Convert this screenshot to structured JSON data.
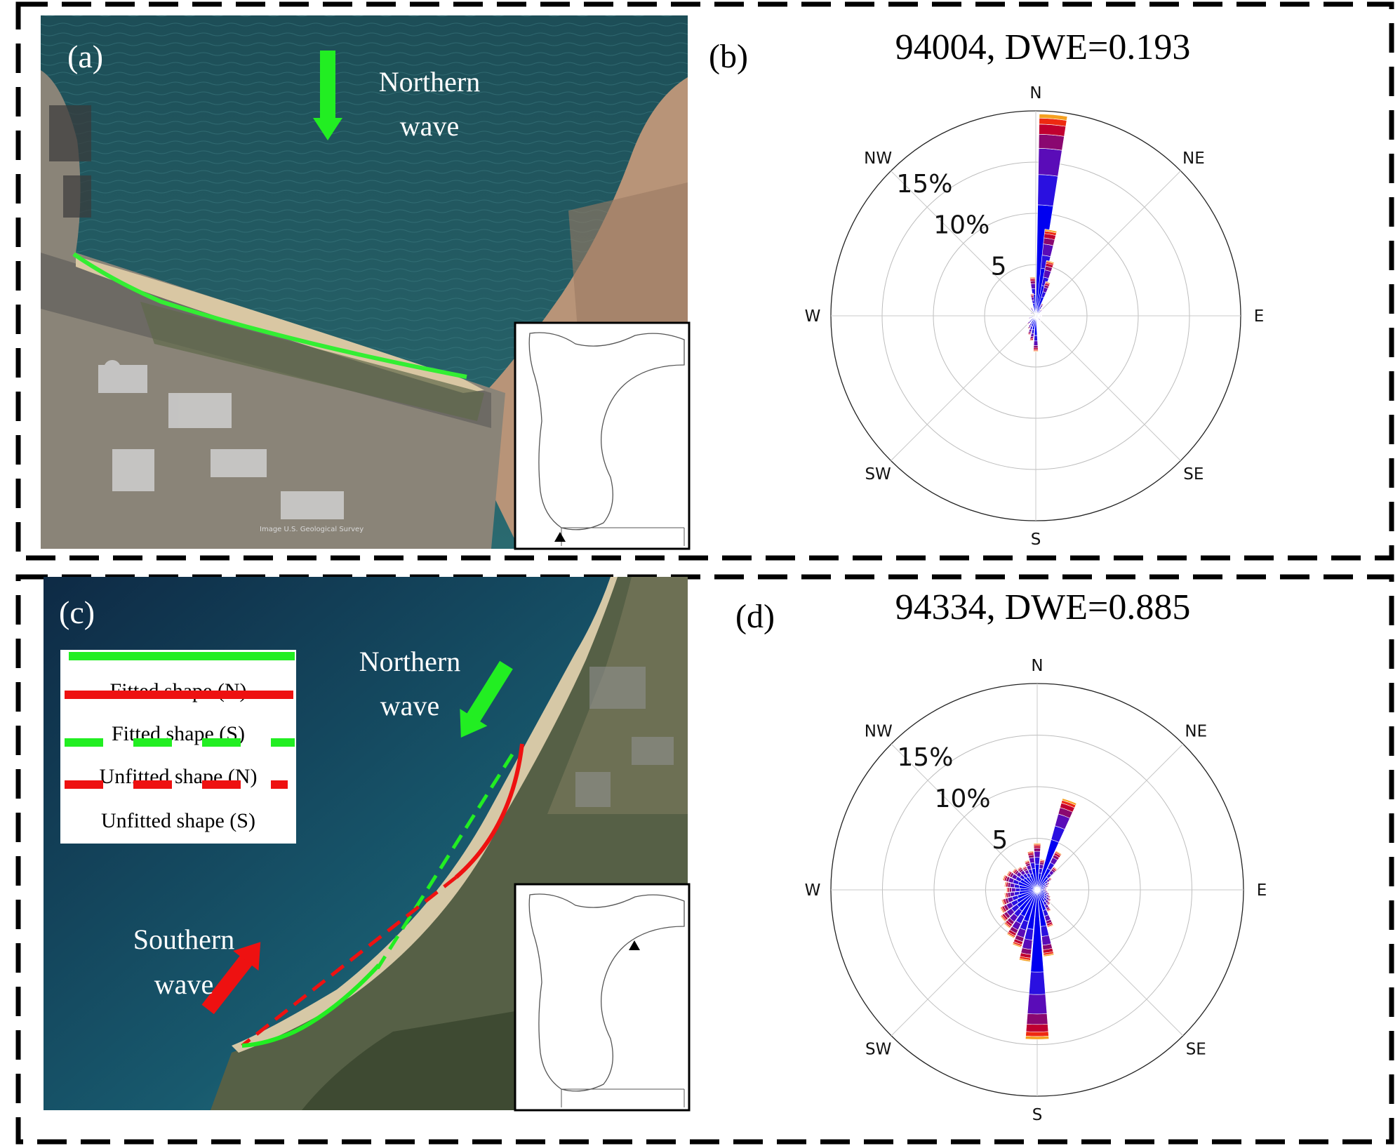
{
  "panels": {
    "a": {
      "label": "(a)",
      "arrow_label_line1": "Northern",
      "arrow_label_line2": "wave",
      "credit": "Image U.S. Geological Survey",
      "arrow_color": "#22ee22",
      "shoreline_color": "#33ee33"
    },
    "b": {
      "label": "(b)",
      "title": "94004, DWE=0.193"
    },
    "c": {
      "label": "(c)",
      "north_label_line1": "Northern",
      "north_label_line2": "wave",
      "south_label_line1": "Southern",
      "south_label_line2": "wave",
      "legend": [
        {
          "label": "Fitted shape (N)",
          "color": "#22ee22",
          "style": "solid"
        },
        {
          "label": "Fitted shape (S)",
          "color": "#ee1111",
          "style": "solid"
        },
        {
          "label": "Unfitted shape (N)",
          "color": "#22ee22",
          "style": "dashed"
        },
        {
          "label": "Unfitted shape (S)",
          "color": "#ee1111",
          "style": "dashed"
        }
      ]
    },
    "d": {
      "label": "(d)",
      "title": "94334, DWE=0.885"
    }
  },
  "compass": [
    "N",
    "NE",
    "E",
    "SE",
    "S",
    "SW",
    "W",
    "NW"
  ],
  "chart_data": [
    {
      "type": "polar-bar",
      "panel": "b",
      "title": "94004, DWE=0.193",
      "radial_ticks": [
        "5",
        "10%",
        "15%"
      ],
      "radial_tick_values": [
        5,
        10,
        15
      ],
      "rmax": 20,
      "bins": [
        {
          "dir": 5,
          "value": 19.7
        },
        {
          "dir": 10,
          "value": 8.5
        },
        {
          "dir": 15,
          "value": 5.5
        },
        {
          "dir": 20,
          "value": 3.5
        },
        {
          "dir": 355,
          "value": 3.8
        },
        {
          "dir": 350,
          "value": 2.2
        },
        {
          "dir": 30,
          "value": 1.4
        },
        {
          "dir": 45,
          "value": 0.9
        },
        {
          "dir": 90,
          "value": 0.6
        },
        {
          "dir": 135,
          "value": 0.7
        },
        {
          "dir": 180,
          "value": 3.5
        },
        {
          "dir": 190,
          "value": 2.5
        },
        {
          "dir": 200,
          "value": 2.0
        },
        {
          "dir": 210,
          "value": 1.5
        },
        {
          "dir": 225,
          "value": 1.2
        },
        {
          "dir": 250,
          "value": 0.8
        },
        {
          "dir": 300,
          "value": 0.7
        },
        {
          "dir": 330,
          "value": 1.0
        }
      ]
    },
    {
      "type": "polar-bar",
      "panel": "d",
      "title": "94334, DWE=0.885",
      "radial_ticks": [
        "5",
        "10%",
        "15%"
      ],
      "radial_tick_values": [
        5,
        10,
        15
      ],
      "rmax": 20,
      "bins": [
        {
          "dir": 0,
          "value": 4.5
        },
        {
          "dir": 10,
          "value": 3.0
        },
        {
          "dir": 20,
          "value": 9.2
        },
        {
          "dir": 30,
          "value": 4.2
        },
        {
          "dir": 40,
          "value": 2.8
        },
        {
          "dir": 50,
          "value": 1.8
        },
        {
          "dir": 60,
          "value": 1.4
        },
        {
          "dir": 70,
          "value": 1.2
        },
        {
          "dir": 80,
          "value": 1.0
        },
        {
          "dir": 90,
          "value": 1.0
        },
        {
          "dir": 100,
          "value": 1.1
        },
        {
          "dir": 110,
          "value": 1.3
        },
        {
          "dir": 120,
          "value": 1.5
        },
        {
          "dir": 130,
          "value": 1.7
        },
        {
          "dir": 140,
          "value": 1.9
        },
        {
          "dir": 150,
          "value": 2.4
        },
        {
          "dir": 160,
          "value": 3.8
        },
        {
          "dir": 170,
          "value": 6.5
        },
        {
          "dir": 180,
          "value": 14.5
        },
        {
          "dir": 190,
          "value": 7.0
        },
        {
          "dir": 200,
          "value": 5.8
        },
        {
          "dir": 210,
          "value": 5.2
        },
        {
          "dir": 220,
          "value": 4.6
        },
        {
          "dir": 230,
          "value": 4.4
        },
        {
          "dir": 240,
          "value": 4.0
        },
        {
          "dir": 250,
          "value": 3.6
        },
        {
          "dir": 260,
          "value": 3.2
        },
        {
          "dir": 270,
          "value": 3.0
        },
        {
          "dir": 280,
          "value": 3.2
        },
        {
          "dir": 290,
          "value": 3.5
        },
        {
          "dir": 300,
          "value": 3.3
        },
        {
          "dir": 310,
          "value": 3.0
        },
        {
          "dir": 320,
          "value": 2.8
        },
        {
          "dir": 330,
          "value": 2.6
        },
        {
          "dir": 340,
          "value": 3.0
        },
        {
          "dir": 350,
          "value": 3.8
        }
      ]
    }
  ]
}
